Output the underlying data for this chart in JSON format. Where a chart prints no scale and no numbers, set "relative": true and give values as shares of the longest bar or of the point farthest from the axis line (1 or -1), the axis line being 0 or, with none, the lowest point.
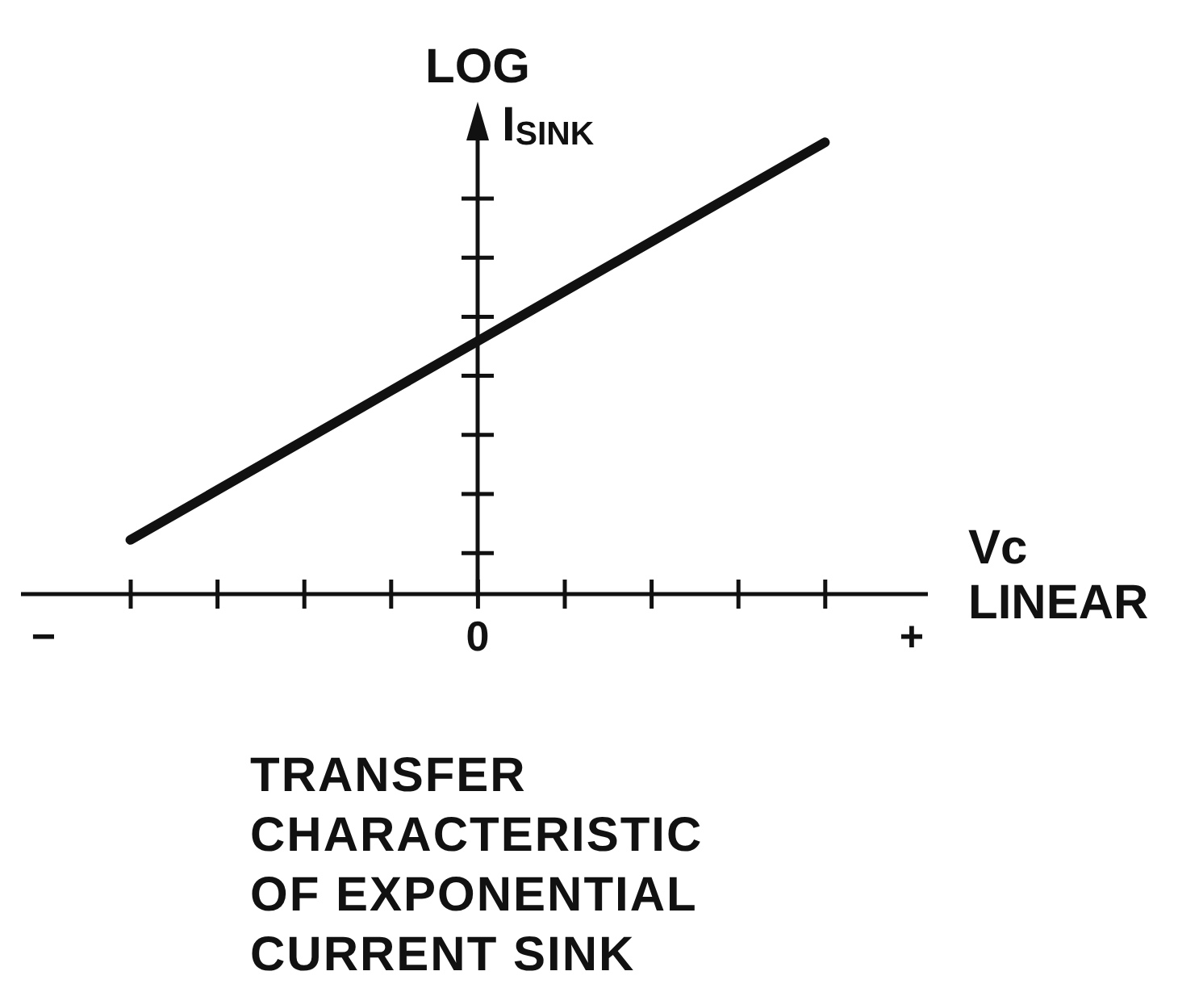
{
  "chart_data": {
    "type": "line",
    "title": "TRANSFER CHARACTERISTIC OF EXPONENTIAL CURRENT SINK",
    "xlabel": "Vc\nLINEAR",
    "ylabel": "LOG\nI$_{SINK}$",
    "categories": [
      "−",
      null,
      null,
      null,
      null,
      "0",
      null,
      null,
      null,
      null,
      "+"
    ],
    "values": [
      null,
      0.12,
      0.23,
      0.34,
      0.45,
      0.56,
      0.67,
      0.78,
      0.89,
      1,
      null
    ],
    "color": "#111111",
    "relative": true
  }
}
